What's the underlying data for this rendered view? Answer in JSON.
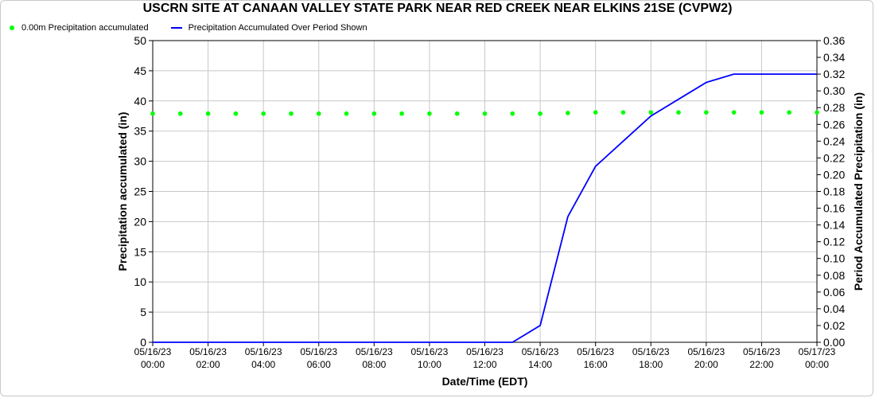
{
  "chart_data": {
    "type": "line",
    "title": "USCRN SITE AT CANAAN VALLEY STATE PARK NEAR RED CREEK NEAR ELKINS 21SE (CVPW2)",
    "xlabel": "Date/Time (EDT)",
    "ylabel_left": "Precipitation accumulated (in)",
    "ylabel_right": "Period Accumulated Precipitation (in)",
    "ylim_left": [
      0,
      50
    ],
    "ylim_right": [
      0,
      0.36
    ],
    "yticks_left": [
      0,
      5,
      10,
      15,
      20,
      25,
      30,
      35,
      40,
      45,
      50
    ],
    "yticks_right": [
      "0.00",
      "0.02",
      "0.04",
      "0.06",
      "0.08",
      "0.10",
      "0.12",
      "0.14",
      "0.16",
      "0.18",
      "0.20",
      "0.22",
      "0.24",
      "0.26",
      "0.28",
      "0.30",
      "0.32",
      "0.34",
      "0.36"
    ],
    "xticks": [
      {
        "hour": 0,
        "date": "05/16/23",
        "time": "00:00"
      },
      {
        "hour": 2,
        "date": "05/16/23",
        "time": "02:00"
      },
      {
        "hour": 4,
        "date": "05/16/23",
        "time": "04:00"
      },
      {
        "hour": 6,
        "date": "05/16/23",
        "time": "06:00"
      },
      {
        "hour": 8,
        "date": "05/16/23",
        "time": "08:00"
      },
      {
        "hour": 10,
        "date": "05/16/23",
        "time": "10:00"
      },
      {
        "hour": 12,
        "date": "05/16/23",
        "time": "12:00"
      },
      {
        "hour": 14,
        "date": "05/16/23",
        "time": "14:00"
      },
      {
        "hour": 16,
        "date": "05/16/23",
        "time": "16:00"
      },
      {
        "hour": 18,
        "date": "05/16/23",
        "time": "18:00"
      },
      {
        "hour": 20,
        "date": "05/16/23",
        "time": "20:00"
      },
      {
        "hour": 22,
        "date": "05/16/23",
        "time": "22:00"
      },
      {
        "hour": 24,
        "date": "05/17/23",
        "time": "00:00"
      }
    ],
    "grid": true,
    "legend_position": "top-left",
    "series": [
      {
        "name": "0.00m Precipitation accumulated",
        "axis": "left",
        "style": "points",
        "color": "#00ff00",
        "x": [
          0,
          1,
          2,
          3,
          4,
          5,
          6,
          7,
          8,
          9,
          10,
          11,
          12,
          13,
          14,
          15,
          16,
          17,
          18,
          19,
          20,
          21,
          22,
          23,
          24
        ],
        "values": [
          37.9,
          37.9,
          37.9,
          37.9,
          37.9,
          37.9,
          37.9,
          37.9,
          37.9,
          37.9,
          37.9,
          37.9,
          37.9,
          37.9,
          37.9,
          38.0,
          38.1,
          38.1,
          38.1,
          38.1,
          38.1,
          38.1,
          38.1,
          38.1,
          38.1
        ]
      },
      {
        "name": "Precipitation Accumulated Over Period Shown",
        "axis": "right",
        "style": "line",
        "color": "#0000ff",
        "x": [
          0,
          13,
          14,
          15,
          16,
          17,
          18,
          19,
          20,
          21,
          22,
          23,
          24
        ],
        "values": [
          0,
          0,
          0.02,
          0.15,
          0.21,
          0.24,
          0.27,
          0.29,
          0.31,
          0.32,
          0.32,
          0.32,
          0.32
        ]
      }
    ]
  }
}
